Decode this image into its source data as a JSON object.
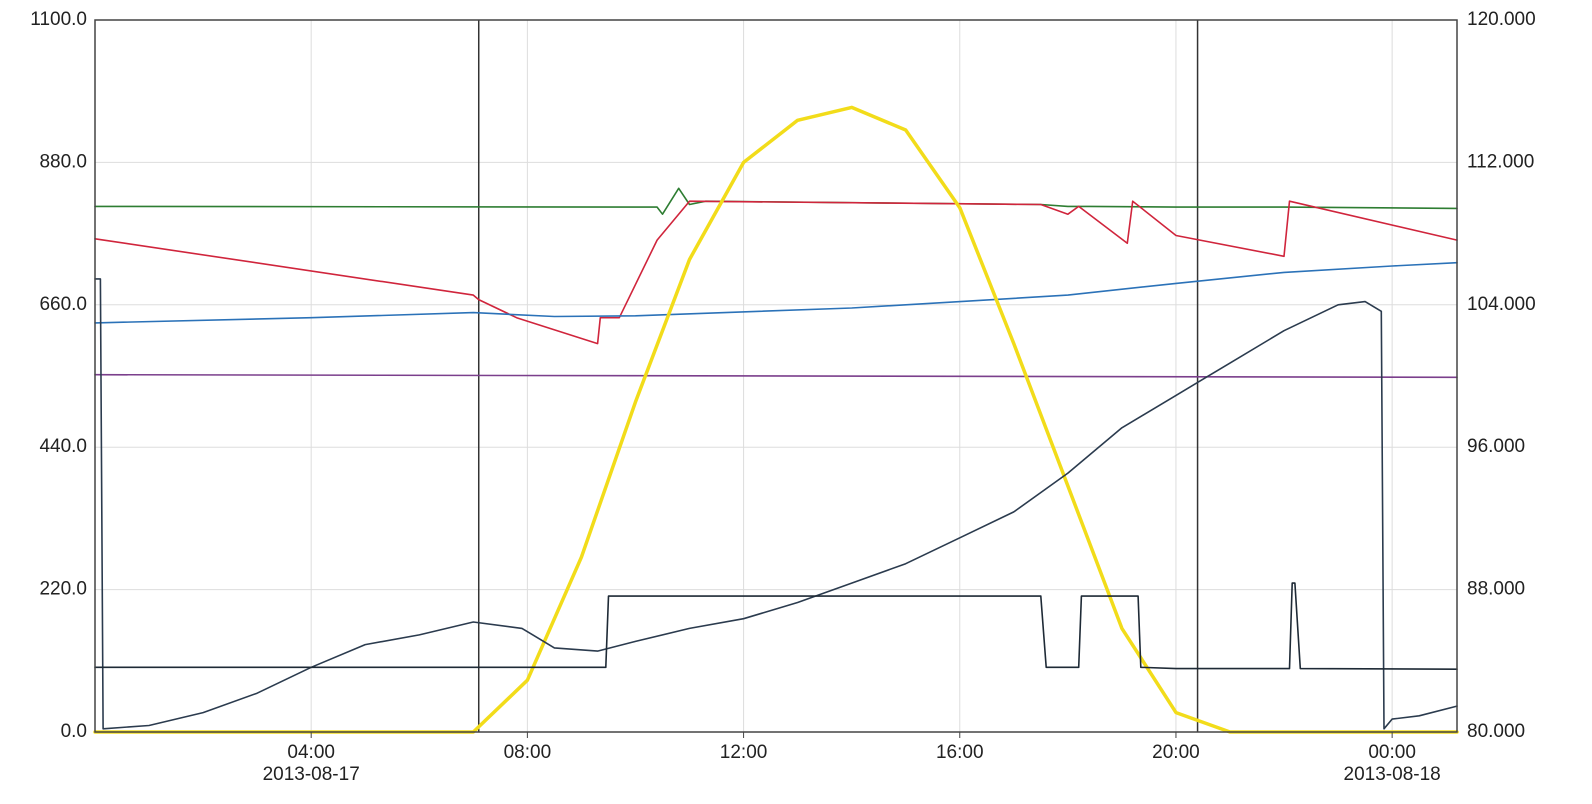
{
  "chart_data": {
    "type": "line",
    "title": "",
    "xlabel": "",
    "ylabel": "",
    "x_unit": "hours since 2013-08-17 00:00",
    "x_range": [
      0.0,
      25.2
    ],
    "x_ticks": [
      {
        "x": 4,
        "label": "04:00",
        "date": "2013-08-17"
      },
      {
        "x": 8,
        "label": "08:00",
        "date": ""
      },
      {
        "x": 12,
        "label": "12:00",
        "date": ""
      },
      {
        "x": 16,
        "label": "16:00",
        "date": ""
      },
      {
        "x": 20,
        "label": "20:00",
        "date": ""
      },
      {
        "x": 24,
        "label": "00:00",
        "date": "2013-08-18"
      }
    ],
    "y_left": {
      "range": [
        0,
        1100
      ],
      "ticks": [
        "0.0",
        "220.0",
        "440.0",
        "660.0",
        "880.0",
        "1100.0"
      ]
    },
    "y_right": {
      "range": [
        80,
        120
      ],
      "ticks": [
        "80.000",
        "88.000",
        "96.000",
        "104.000",
        "112.000",
        "120.000"
      ]
    },
    "grid": true,
    "legend": "none",
    "markers": [
      7.1,
      20.4
    ],
    "colors": {
      "axis": "#444444",
      "grid": "#dddddd",
      "marker": "#333333",
      "text": "#222222"
    },
    "series": [
      {
        "color": "#2e7d32",
        "axis": "left",
        "x": [
          0.0,
          10.4,
          10.5,
          10.8,
          11.0,
          11.3,
          17.5,
          18.0,
          18.4,
          20.0,
          22.0,
          25.2
        ],
        "y": [
          812,
          811,
          800,
          840,
          815,
          820,
          815,
          812,
          812,
          811,
          811,
          809
        ]
      },
      {
        "color": "#d0253c",
        "axis": "left",
        "x": [
          0.0,
          7.0,
          7.1,
          7.8,
          9.3,
          9.35,
          9.7,
          10.4,
          11.0,
          17.5,
          18.0,
          18.2,
          19.1,
          19.2,
          20.0,
          22.0,
          22.1,
          25.2
        ],
        "y": [
          762,
          675,
          668,
          640,
          600,
          640,
          640,
          760,
          820,
          815,
          800,
          812,
          755,
          820,
          767,
          735,
          820,
          760
        ]
      },
      {
        "color": "#2b72b8",
        "axis": "left",
        "x": [
          0.0,
          4.0,
          7.0,
          8.5,
          10.0,
          14.0,
          18.0,
          20.0,
          22.0,
          24.0,
          25.2
        ],
        "y": [
          632,
          640,
          648,
          642,
          643,
          655,
          675,
          693,
          710,
          720,
          725
        ]
      },
      {
        "color": "#7b3f8c",
        "axis": "left",
        "x": [
          0.0,
          25.2
        ],
        "y": [
          552,
          548
        ]
      },
      {
        "color": "#f2dc1a",
        "axis": "left",
        "x": [
          0.0,
          7.0,
          8.0,
          9.0,
          10.0,
          11.0,
          12.0,
          13.0,
          14.0,
          15.0,
          16.0,
          17.0,
          18.0,
          19.0,
          20.0,
          21.0,
          22.0,
          25.2
        ],
        "y": [
          0,
          0,
          80,
          270,
          510,
          730,
          880,
          945,
          965,
          930,
          810,
          600,
          380,
          160,
          30,
          0,
          0,
          0
        ]
      },
      {
        "color": "#2b3b4e",
        "axis": "left",
        "x": [
          0.0,
          0.1,
          0.15,
          1.0,
          2.0,
          3.0,
          4.0,
          5.0,
          6.0,
          7.0,
          7.9,
          8.5,
          9.3,
          10.0,
          11.0,
          12.0,
          13.0,
          14.0,
          15.0,
          16.0,
          17.0,
          18.0,
          19.0,
          20.0,
          20.5,
          21.0,
          22.0,
          23.0,
          23.5,
          23.8,
          23.85,
          24.0,
          24.5,
          25.2
        ],
        "y": [
          700,
          700,
          5,
          10,
          30,
          60,
          100,
          135,
          150,
          170,
          160,
          130,
          125,
          140,
          160,
          175,
          200,
          230,
          260,
          300,
          340,
          400,
          470,
          520,
          545,
          570,
          620,
          660,
          665,
          650,
          5,
          20,
          25,
          40
        ]
      },
      {
        "color": "#1e2a36",
        "axis": "left",
        "x": [
          0.0,
          9.45,
          9.5,
          10.4,
          17.5,
          17.6,
          18.2,
          18.25,
          19.3,
          19.35,
          20.0,
          22.1,
          22.15,
          22.2,
          22.3,
          25.2
        ],
        "y": [
          100,
          100,
          210,
          210,
          210,
          100,
          100,
          210,
          210,
          100,
          98,
          98,
          230,
          230,
          98,
          97
        ]
      }
    ]
  }
}
